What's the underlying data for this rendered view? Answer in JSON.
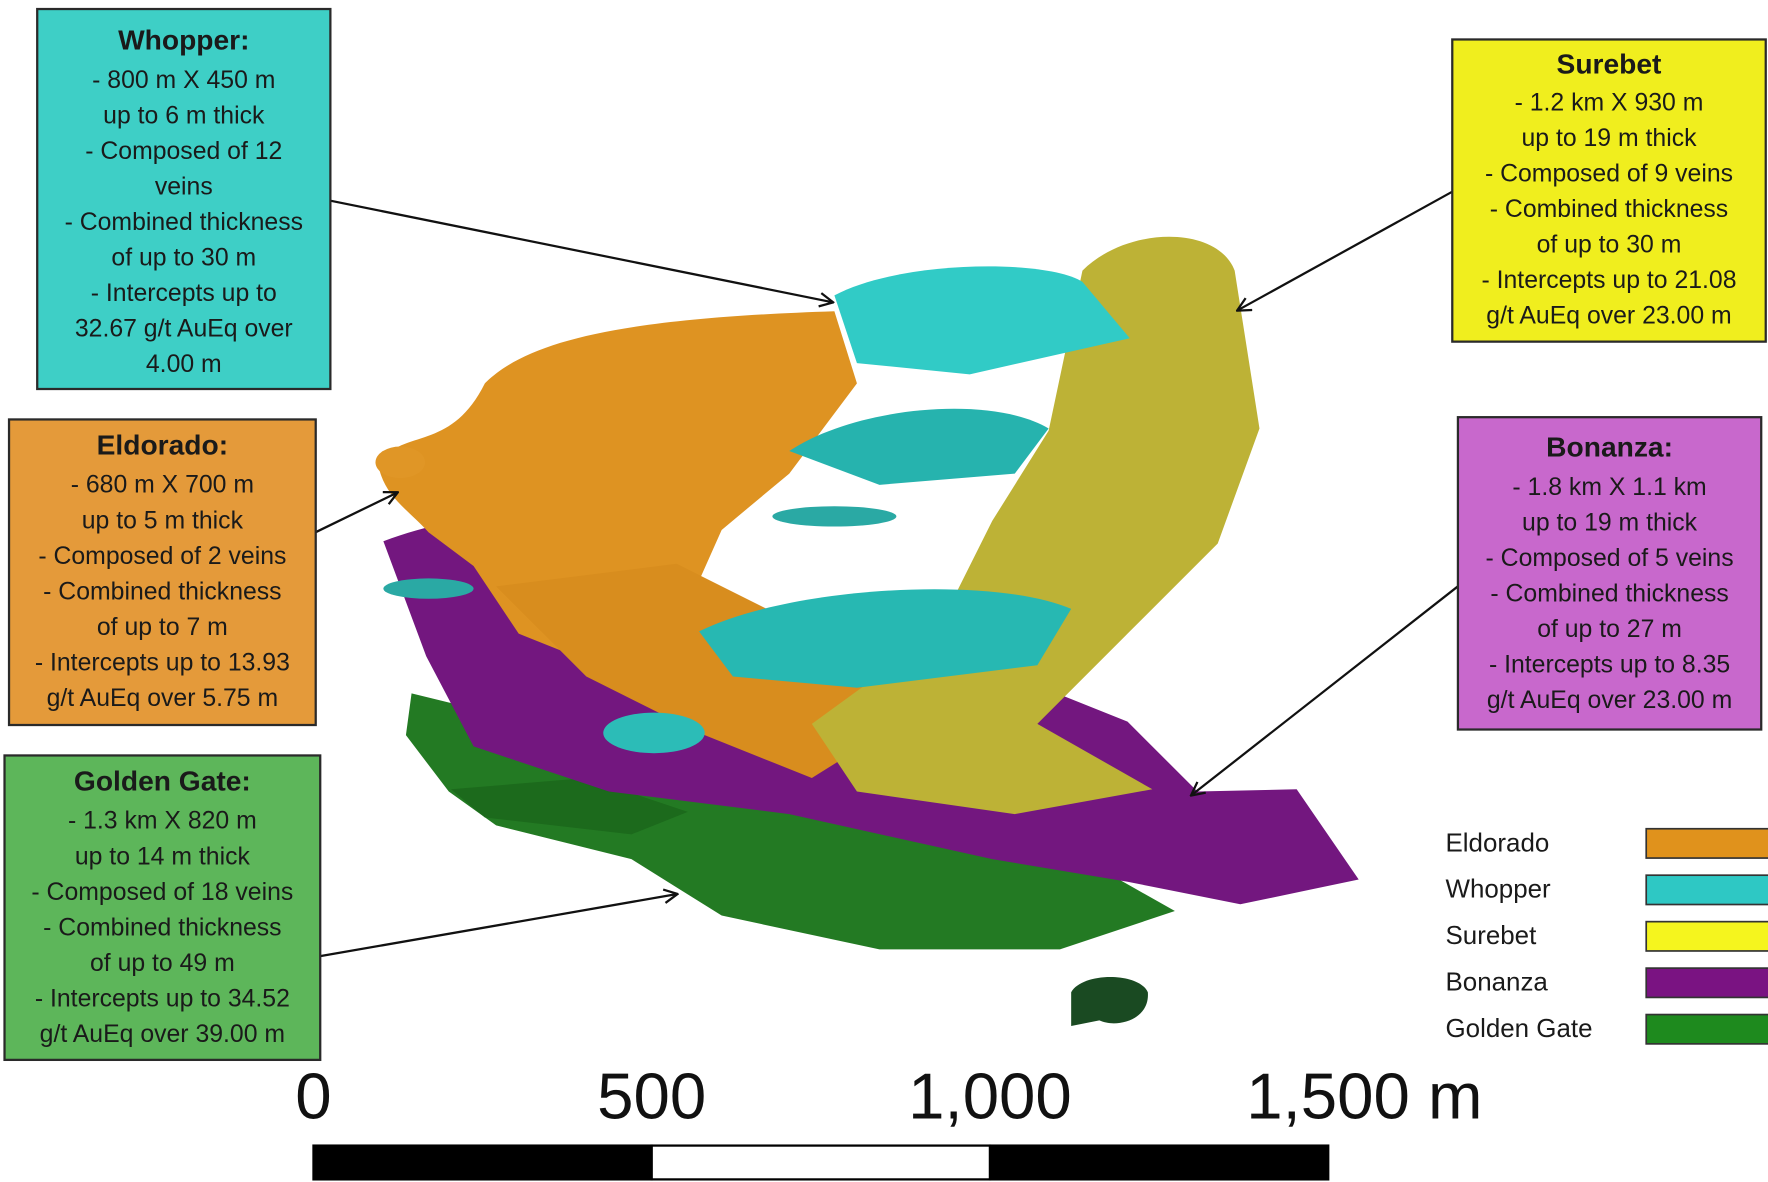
{
  "callouts": [
    {
      "title": "Whopper:",
      "color": "#3ecfc6",
      "lines": [
        "- 800 m X 450 m",
        "up to 6 m thick",
        "- Composed of 12",
        "veins",
        "- Combined thickness",
        "of up to 30 m",
        "- Intercepts up to",
        "32.67 g/t AuEq over",
        "4.00 m"
      ]
    },
    {
      "title": "Surebet",
      "color": "#f0ee1e",
      "lines": [
        "- 1.2 km X 930 m",
        "up to 19 m thick",
        "- Composed of 9 veins",
        "- Combined thickness",
        "of up to 30 m",
        "- Intercepts up to 21.08",
        "g/t AuEq over 23.00 m"
      ]
    },
    {
      "title": "Eldorado:",
      "color": "#e49a3a",
      "lines": [
        "- 680 m X 700 m",
        "up to 5 m thick",
        "- Composed of 2 veins",
        "- Combined thickness",
        "of up to 7 m",
        "- Intercepts up to 13.93",
        "g/t AuEq over 5.75 m"
      ]
    },
    {
      "title": "Bonanza:",
      "color": "#c868cc",
      "lines": [
        "- 1.8 km X 1.1 km",
        "up to 19 m thick",
        "- Composed of 5 veins",
        "- Combined thickness",
        "of up to 27 m",
        "- Intercepts up to 8.35",
        "g/t AuEq over 23.00 m"
      ]
    },
    {
      "title": "Golden Gate:",
      "color": "#5db65a",
      "lines": [
        "- 1.3 km X 820 m",
        "up to 14 m thick",
        "- Composed of 18 veins",
        "- Combined thickness",
        "of up to 49 m",
        "- Intercepts up to 34.52",
        "g/t AuEq over 39.00 m"
      ]
    }
  ],
  "legend": [
    {
      "label": "Eldorado",
      "color": "#e0921c"
    },
    {
      "label": "Whopper",
      "color": "#2ec8c4"
    },
    {
      "label": "Surebet",
      "color": "#f5f51e"
    },
    {
      "label": "Bonanza",
      "color": "#7a1382"
    },
    {
      "label": "Golden Gate",
      "color": "#1e8a1e"
    }
  ],
  "scale_bar": {
    "labels": [
      "0",
      "500",
      "1,000",
      "1,500 m"
    ]
  }
}
